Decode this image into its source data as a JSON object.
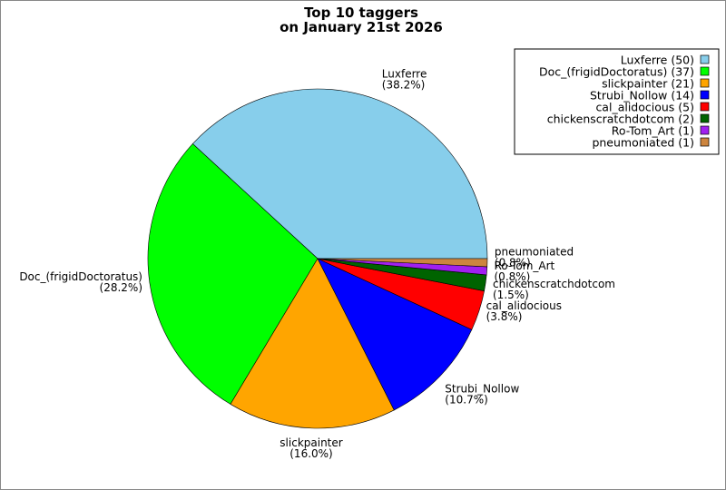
{
  "chart_data": {
    "type": "pie",
    "title_lines": [
      "Top 10 taggers",
      "on January 21st 2026"
    ],
    "legend_position": "top-right",
    "slices": [
      {
        "name": "Luxferre",
        "value": 50,
        "percent": "38.2%",
        "legend": "Luxferre (50)",
        "color": "#87CEEB"
      },
      {
        "name": "Doc_(frigidDoctoratus)",
        "value": 37,
        "percent": "28.2%",
        "legend": "Doc_(frigidDoctoratus) (37)",
        "color": "#00FF00"
      },
      {
        "name": "slickpainter",
        "value": 21,
        "percent": "16.0%",
        "legend": "slickpainter (21)",
        "color": "#FFA500"
      },
      {
        "name": "Strubi_Nollow",
        "value": 14,
        "percent": "10.7%",
        "legend": "Strubi_Nollow (14)",
        "color": "#0000FF"
      },
      {
        "name": "cal_alidocious",
        "value": 5,
        "percent": "3.8%",
        "legend": "cal_alidocious (5)",
        "color": "#FF0000"
      },
      {
        "name": "chickenscratchdotcom",
        "value": 2,
        "percent": "1.5%",
        "legend": "chickenscratchdotcom (2)",
        "color": "#006400"
      },
      {
        "name": "Ro-Tom_Art",
        "value": 1,
        "percent": "0.8%",
        "legend": "Ro-Tom_Art (1)",
        "color": "#A020F0"
      },
      {
        "name": "pneumoniated",
        "value": 1,
        "percent": "0.8%",
        "legend": "pneumoniated (1)",
        "color": "#CD853F"
      }
    ]
  }
}
